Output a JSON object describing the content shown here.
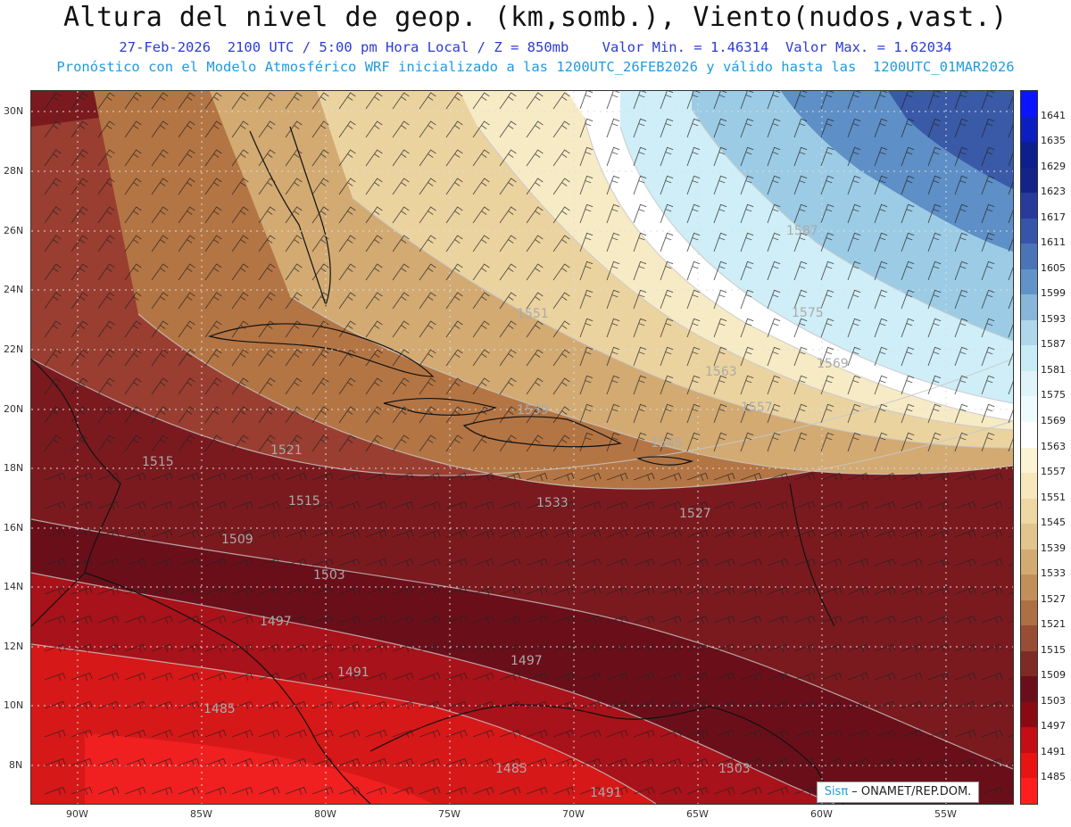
{
  "header": {
    "title": "Altura del nivel de geop. (km,somb.), Viento(nudos,vast.)",
    "line1": "27-Feb-2026  2100 UTC / 5:00 pm Hora Local / Z = 850mb    Valor Min. = 1.46314  Valor Max. = 1.62034",
    "line2": "Pronóstico con el Modelo Atmosférico WRF inicializado a las 1200UTC_26FEB2026 y válido hasta las  1200UTC_01MAR2026"
  },
  "map": {
    "lat_labels": [
      "30N",
      "28N",
      "26N",
      "24N",
      "22N",
      "20N",
      "18N",
      "16N",
      "14N",
      "12N",
      "10N",
      "8N"
    ],
    "lon_labels": [
      "90W",
      "85W",
      "80W",
      "75W",
      "70W",
      "65W",
      "60W",
      "55W"
    ],
    "contour_labels": [
      "1587",
      "1575",
      "1569",
      "1563",
      "1557",
      "1551",
      "1545",
      "1539",
      "1533",
      "1527",
      "1521",
      "1515",
      "1515",
      "1509",
      "1503",
      "1497",
      "1491",
      "1497",
      "1485",
      "1485",
      "1503",
      "1491"
    ]
  },
  "colorbar": {
    "ticks": [
      "1641",
      "1635",
      "1629",
      "1623",
      "1617",
      "1611",
      "1605",
      "1599",
      "1593",
      "1587",
      "1581",
      "1575",
      "1569",
      "1563",
      "1557",
      "1551",
      "1545",
      "1539",
      "1533",
      "1527",
      "1521",
      "1515",
      "1509",
      "1503",
      "1497",
      "1491",
      "1485"
    ],
    "colors": [
      "#0a14ff",
      "#0b1ec0",
      "#0d1f8c",
      "#14238a",
      "#283b9a",
      "#3655a8",
      "#4a74b8",
      "#6193c8",
      "#88b5da",
      "#b0d6ea",
      "#c8ecf5",
      "#def4fa",
      "#eefbfd",
      "#ffffff",
      "#fbf4d4",
      "#f6e7bd",
      "#eed8a4",
      "#e2c48e",
      "#d3ab72",
      "#c1905a",
      "#ad6f44",
      "#984e34",
      "#7f2b25",
      "#6a0f1a",
      "#8a0a14",
      "#c20e14",
      "#e81414",
      "#ff1e1e"
    ]
  },
  "credit": {
    "sis": "Sisπ",
    "rest": " – ONAMET/REP.DOM."
  }
}
